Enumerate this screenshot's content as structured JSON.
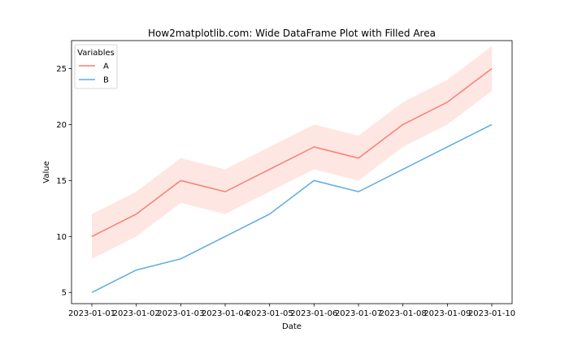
{
  "chart_data": {
    "type": "line",
    "title": "How2matplotlib.com: Wide DataFrame Plot with Filled Area",
    "xlabel": "Date",
    "ylabel": "Value",
    "x": [
      "2023-01-01",
      "2023-01-02",
      "2023-01-03",
      "2023-01-04",
      "2023-01-05",
      "2023-01-06",
      "2023-01-07",
      "2023-01-08",
      "2023-01-09",
      "2023-01-10"
    ],
    "yticks": [
      5,
      10,
      15,
      20,
      25
    ],
    "ylim": [
      4.0,
      27.5
    ],
    "grid": false,
    "legend": {
      "title": "Variables",
      "placement": "top-left"
    },
    "series": [
      {
        "name": "A",
        "color": "#fa8072",
        "values": [
          10,
          12,
          15,
          14,
          16,
          18,
          17,
          20,
          22,
          25
        ],
        "band": {
          "lower": [
            8,
            10,
            13,
            12,
            14,
            16,
            15,
            18,
            20,
            23
          ],
          "upper": [
            12,
            14,
            17,
            16,
            18,
            20,
            19,
            22,
            24,
            27
          ]
        }
      },
      {
        "name": "B",
        "color": "#5dade2",
        "values": [
          5,
          7,
          8,
          10,
          12,
          15,
          14,
          16,
          18,
          20
        ]
      }
    ]
  }
}
